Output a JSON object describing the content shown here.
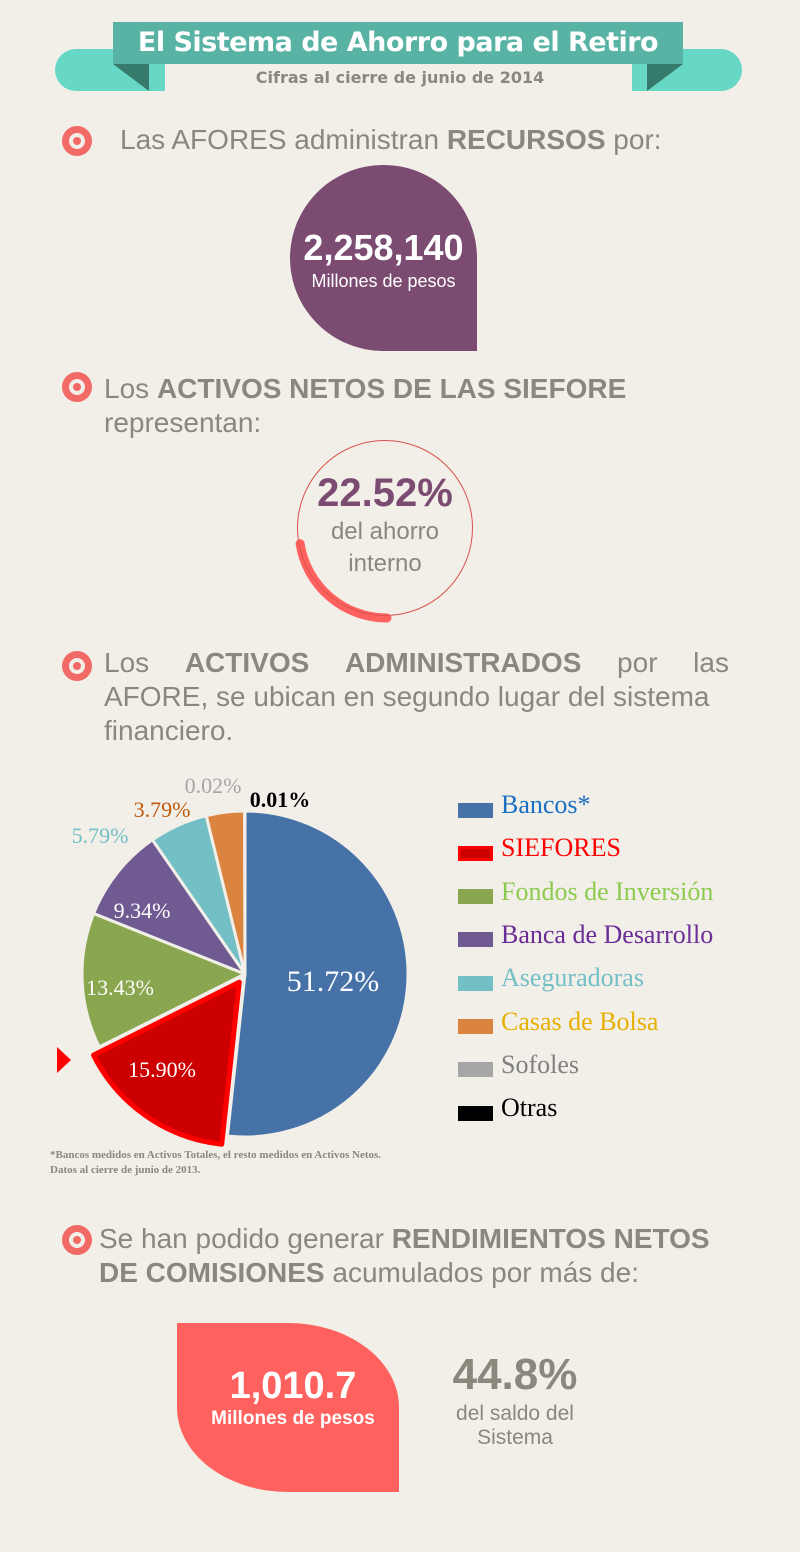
{
  "header": {
    "title": "El Sistema de Ahorro para el Retiro",
    "subtitle": "Cifras al cierre de junio de 2014"
  },
  "section1": {
    "pre": "Las AFORES administran ",
    "bold": "RECURSOS",
    "post": " por:",
    "value": "2,258,140",
    "unit": "Millones de pesos"
  },
  "section2": {
    "pre": "Los ",
    "bold": "ACTIVOS NETOS DE LAS SIEFORE",
    "post": "representan:",
    "value": "22.52%",
    "caption1": "del ahorro",
    "caption2": "interno",
    "fraction": 0.2252
  },
  "section3": {
    "pre": "Los",
    "bold1": "ACTIVOS",
    "bold2": "ADMINISTRADOS",
    "w1": "por",
    "w2": "las",
    "bold3": "AFORE",
    "line2": ", se ubican en segundo lugar del sistema",
    "line3": "financiero."
  },
  "colors": {
    "accent": "#f26a66",
    "purple": "#7b4b72",
    "coral": "#ff625e",
    "teal": "#58b3a5"
  },
  "chart_data": {
    "type": "pie",
    "categories": [
      "Bancos*",
      "SIEFORES",
      "Fondos de Inversión",
      "Banca de Desarrollo",
      "Aseguradoras",
      "Casas de Bolsa",
      "Sofoles",
      "Otras"
    ],
    "values": [
      51.72,
      15.9,
      13.43,
      9.34,
      5.79,
      3.79,
      0.02,
      0.01
    ],
    "labels": [
      "51.72%",
      "15.90%",
      "13.43%",
      "9.34%",
      "5.79%",
      "3.79%",
      "0.02%",
      "0.01%"
    ],
    "slice_colors": [
      "#4672a8",
      "#cc0000",
      "#8aa64e",
      "#6f5a91",
      "#72bfc6",
      "#db8440",
      "#e6e3de",
      "#000000"
    ],
    "legend_text_colors": [
      "#1b6fc0",
      "#ff0000",
      "#8dcb4f",
      "#6a2c96",
      "#72bfc6",
      "#e6b000",
      "#808080",
      "#000000"
    ],
    "label_colors": [
      "#ffffff",
      "#ffffff",
      "#ffffff",
      "#ffffff",
      "#72bfc6",
      "#c0580e",
      "#a6a6a6",
      "#000000"
    ],
    "highlighted": "SIEFORES",
    "legend_position": "right",
    "footnote1": "*Bancos medidos en Activos Totales, el resto medidos en Activos Netos.",
    "footnote2": "Datos al cierre de junio de 2013."
  },
  "section4": {
    "pre": "Se han podido generar ",
    "bold1": "RENDIMIENTOS NETOS",
    "bold2": "DE COMISIONES",
    "post": " acumulados por más de:",
    "value": "1,010.7",
    "unit": "Millones de pesos",
    "pct": "44.8%",
    "pct_caption1": "del saldo del",
    "pct_caption2": "Sistema"
  }
}
